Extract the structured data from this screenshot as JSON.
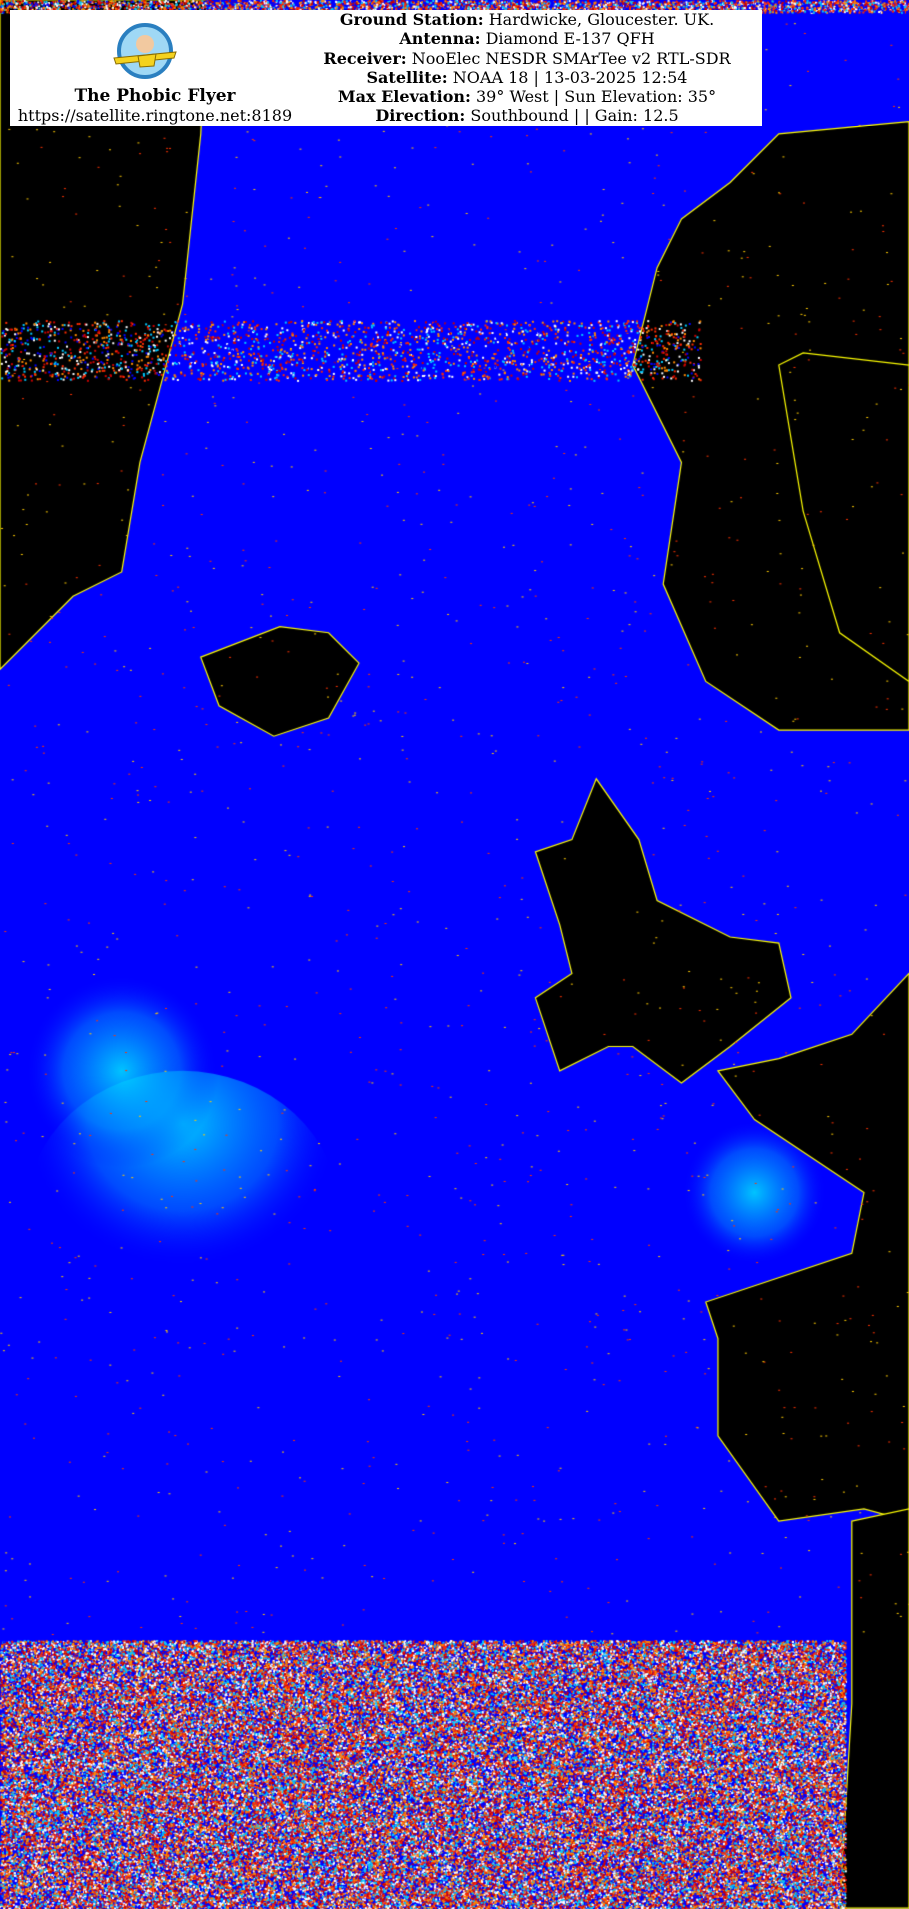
{
  "image": {
    "type": "NOAA APT satellite image with coastline overlay",
    "colors": {
      "sea": "#0000ff",
      "cloud": "#00e5ff",
      "land": "#000000",
      "coastline": "#ffff00",
      "noise_red": "#ff2a00"
    }
  },
  "header": {
    "brand_name": "The Phobic Flyer",
    "url": "https://satellite.ringtone.net:8189",
    "lines": [
      {
        "label": "Ground Station:",
        "value": "Hardwicke, Gloucester. UK."
      },
      {
        "label": "Antenna:",
        "value": "Diamond E-137 QFH"
      },
      {
        "label": "Receiver:",
        "value": "NooElec NESDR SMArTee v2 RTL-SDR"
      },
      {
        "label": "Satellite:",
        "value": "NOAA 18 | 13-03-2025 12:54"
      },
      {
        "label": "Max Elevation:",
        "value": "39° West | Sun Elevation: 35°"
      },
      {
        "label": "Direction:",
        "value": "Southbound | | Gain: 12.5"
      }
    ]
  }
}
